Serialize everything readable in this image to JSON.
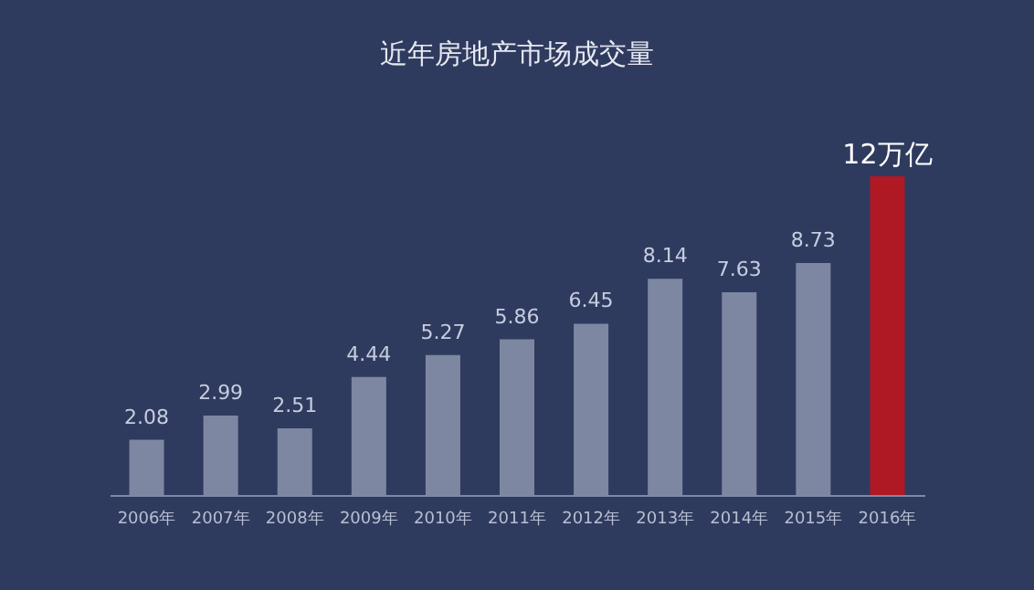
{
  "chart_data": {
    "type": "bar",
    "title": "近年房地产市场成交量",
    "categories": [
      "2006年",
      "2007年",
      "2008年",
      "2009年",
      "2010年",
      "2011年",
      "2012年",
      "2013年",
      "2014年",
      "2015年",
      "2016年"
    ],
    "values": [
      2.08,
      2.99,
      2.51,
      4.44,
      5.27,
      5.86,
      6.45,
      8.14,
      7.63,
      8.73,
      12
    ],
    "colors": [
      "#8c95ae",
      "#8c95ae",
      "#8c95ae",
      "#8c95ae",
      "#8c95ae",
      "#8c95ae",
      "#8c95ae",
      "#8c95ae",
      "#8c95ae",
      "#8c95ae",
      "#c4141a"
    ],
    "value_labels": [
      "2.08",
      "2.99",
      "2.51",
      "4.44",
      "5.27",
      "5.86",
      "6.45",
      "8.14",
      "7.63",
      "8.73",
      "12万亿"
    ]
  }
}
